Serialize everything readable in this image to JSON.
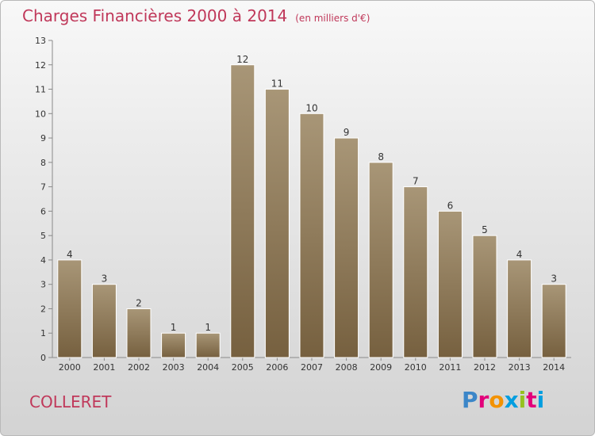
{
  "title": "Charges Financières 2000 à 2014",
  "unit": "(en milliers d'€)",
  "commune": "COLLERET",
  "logo": [
    "P",
    "r",
    "o",
    "x",
    "i",
    "t",
    "i"
  ],
  "logo_colors": [
    "#3b86c8",
    "#e2007a",
    "#f39200",
    "#009ee0",
    "#95c11f",
    "#e2007a",
    "#009ee0"
  ],
  "chart_data": {
    "type": "bar",
    "categories": [
      "2000",
      "2001",
      "2002",
      "2003",
      "2004",
      "2005",
      "2006",
      "2007",
      "2008",
      "2009",
      "2010",
      "2011",
      "2012",
      "2013",
      "2014"
    ],
    "values": [
      4,
      3,
      2,
      1,
      1,
      12,
      11,
      10,
      9,
      8,
      7,
      6,
      5,
      4,
      3
    ],
    "data_labels": [
      "4",
      "3",
      "2",
      "1",
      "1",
      "12",
      "11",
      "10",
      "9",
      "8",
      "7",
      "6",
      "5",
      "4",
      "3"
    ],
    "ylim": [
      0,
      13
    ],
    "yticks": [
      "0",
      "1",
      "2",
      "3",
      "4",
      "5",
      "6",
      "7",
      "8",
      "9",
      "10",
      "11",
      "12",
      "13"
    ],
    "grid": false,
    "bar_color_top": "#a89677",
    "bar_color_bottom": "#76603f"
  }
}
